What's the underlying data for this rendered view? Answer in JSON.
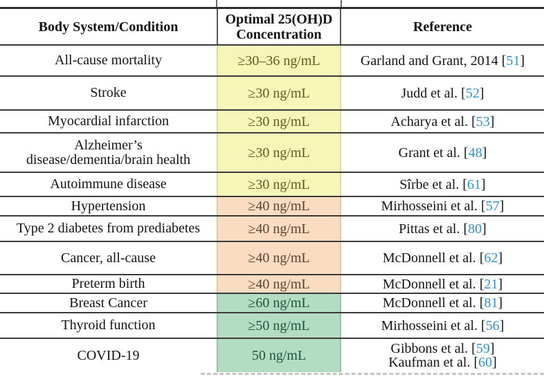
{
  "table": {
    "headers": [
      "Body System/Condition",
      "Optimal 25(OH)D Concentration",
      "Reference"
    ],
    "citation": {
      "open": "[",
      "close": "]"
    },
    "rows": [
      {
        "condition": "All-cause mortality",
        "concentration": "≥30–36 ng/mL",
        "color": "yellow",
        "references": [
          {
            "text": "Garland and Grant, 2014",
            "num": "51"
          }
        ]
      },
      {
        "condition": "Stroke",
        "concentration": "≥30 ng/mL",
        "color": "yellow",
        "references": [
          {
            "text": "Judd et al.",
            "num": "52"
          }
        ]
      },
      {
        "condition": "Myocardial infarction",
        "concentration": "≥30 ng/mL",
        "color": "yellow",
        "references": [
          {
            "text": "Acharya et al.",
            "num": "53"
          }
        ]
      },
      {
        "condition": "Alzheimer’s\ndisease/dementia/brain health",
        "concentration": "≥30 ng/mL",
        "color": "yellow",
        "references": [
          {
            "text": "Grant et al.",
            "num": "48"
          }
        ]
      },
      {
        "condition": "Autoimmune disease",
        "concentration": "≥30 ng/mL",
        "color": "yellow",
        "references": [
          {
            "text": "Sîrbe et al.",
            "num": "61"
          }
        ]
      },
      {
        "condition": "Hypertension",
        "concentration": "≥40 ng/mL",
        "color": "orange",
        "references": [
          {
            "text": "Mirhosseini et al.",
            "num": "57"
          }
        ]
      },
      {
        "condition": "Type 2 diabetes from prediabetes",
        "concentration": "≥40 ng/mL",
        "color": "orange",
        "references": [
          {
            "text": "Pittas et al.",
            "num": "80"
          }
        ]
      },
      {
        "condition": "Cancer, all-cause",
        "concentration": "≥40 ng/mL",
        "color": "orange",
        "references": [
          {
            "text": "McDonnell et al.",
            "num": "62"
          }
        ]
      },
      {
        "condition": "Preterm birth",
        "concentration": "≥40 ng/mL",
        "color": "orange",
        "references": [
          {
            "text": "McDonnell et al.",
            "num": "21"
          }
        ]
      },
      {
        "condition": "Breast Cancer",
        "concentration": "≥60 ng/mL",
        "color": "green",
        "references": [
          {
            "text": "McDonnell et al.",
            "num": "81"
          }
        ]
      },
      {
        "condition": "Thyroid function",
        "concentration": "≥50 ng/mL",
        "color": "green",
        "references": [
          {
            "text": "Mirhosseini et al.",
            "num": "56"
          }
        ]
      },
      {
        "condition": "COVID-19",
        "concentration": "50 ng/mL",
        "color": "green",
        "references": [
          {
            "text": "Gibbons et al.",
            "num": "59"
          },
          {
            "text": "Kaufman et al.",
            "num": "60"
          }
        ]
      }
    ]
  },
  "palette": {
    "fills": {
      "yellow": "#f6f6b8",
      "orange": "#f9dcc1",
      "green": "#b3dcc2"
    },
    "edges": {
      "yellow": "#dede8c",
      "orange": "#eec29a",
      "green": "#8fc7a4"
    },
    "conc_text": {
      "yellow": "#5e5e1c",
      "orange": "#643f2b",
      "green": "#1e5440"
    },
    "citation_blue": "#2d93d3",
    "rule_dark": "#3a3a3a"
  }
}
